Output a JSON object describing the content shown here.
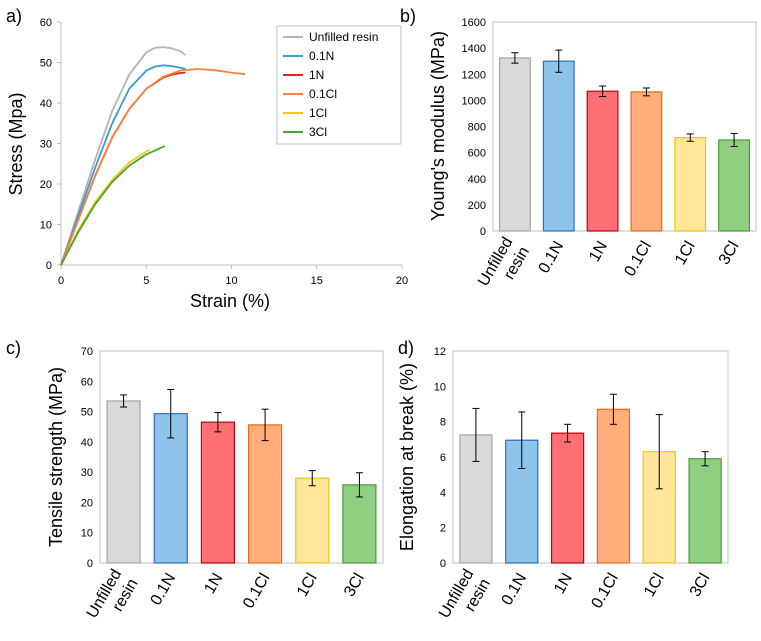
{
  "figure": {
    "colors": {
      "unfilled": "#b4b4b4",
      "n01": "#3a9ad9",
      "n1": "#e52520",
      "cl01": "#f4843c",
      "cl1": "#f7c617",
      "cl3": "#44a832",
      "bar_unfilled": "#d9d9d9",
      "bar_n01": "#8ec4ea",
      "bar_n1": "#ff6f73",
      "bar_cl01": "#ffae7a",
      "bar_cl1": "#ffe699",
      "bar_cl3": "#91cf80",
      "edge_unfilled": "#a5a5a5",
      "edge_n01": "#2a6fbf",
      "edge_n1": "#c0000f",
      "edge_cl01": "#e66a1f",
      "edge_cl1": "#f1c40f",
      "edge_cl3": "#4b9a3a"
    }
  },
  "chart_data": [
    {
      "panel": "a)",
      "type": "line",
      "xlabel": "Strain (%)",
      "ylabel": "Stress (Mpa)",
      "xlim": [
        0,
        20
      ],
      "ylim": [
        0,
        60
      ],
      "xticks": [
        0,
        5,
        10,
        15,
        20
      ],
      "yticks": [
        0,
        10,
        20,
        30,
        40,
        50,
        60
      ],
      "legend_position": "top-right",
      "series": [
        {
          "name": "Unfilled resin",
          "color_key": "unfilled",
          "x": [
            0,
            1,
            2,
            3,
            4,
            5,
            5.5,
            6,
            6.5,
            7,
            7.3
          ],
          "y": [
            0,
            13,
            26,
            38,
            47,
            52.5,
            53.6,
            53.8,
            53.5,
            52.8,
            51.8
          ]
        },
        {
          "name": "0.1N",
          "color_key": "n01",
          "x": [
            0,
            1,
            2,
            3,
            4,
            5,
            5.5,
            6,
            6.5,
            7,
            7.3
          ],
          "y": [
            0,
            12,
            24,
            35,
            43.5,
            48,
            49,
            49.3,
            49.1,
            48.7,
            48.4
          ]
        },
        {
          "name": "1N",
          "color_key": "n1",
          "x": [
            0,
            1,
            2,
            3,
            4,
            5,
            6,
            6.5,
            7,
            7.3
          ],
          "y": [
            0,
            11,
            22,
            31.5,
            38.5,
            43.5,
            46.3,
            47,
            47.4,
            47.5
          ]
        },
        {
          "name": "0.1Cl",
          "color_key": "cl01",
          "x": [
            0,
            1,
            2,
            3,
            4,
            5,
            6,
            7,
            8,
            9,
            10,
            10.8
          ],
          "y": [
            0,
            11,
            22,
            31.5,
            38.5,
            43.5,
            46.5,
            48,
            48.4,
            48.1,
            47.5,
            47.1
          ]
        },
        {
          "name": "1Cl",
          "color_key": "cl1",
          "x": [
            0,
            1,
            2,
            3,
            4,
            5,
            5.2
          ],
          "y": [
            0,
            8.5,
            15.5,
            21,
            25.3,
            28,
            28.4
          ]
        },
        {
          "name": "3Cl",
          "color_key": "cl3",
          "x": [
            0,
            1,
            2,
            3,
            4,
            5,
            6,
            6.1
          ],
          "y": [
            0,
            8,
            15,
            20.5,
            24.5,
            27.3,
            29.2,
            29.3
          ]
        }
      ]
    },
    {
      "panel": "b)",
      "type": "bar",
      "ylabel": "Young's modulus (MPa)",
      "ylim": [
        0,
        1600
      ],
      "yticks": [
        0,
        200,
        400,
        600,
        800,
        1000,
        1200,
        1400,
        1600
      ],
      "categories": [
        "Unfilled resin",
        "0.1N",
        "1N",
        "0.1Cl",
        "1Cl",
        "3Cl"
      ],
      "category_lines": [
        [
          "Unfilled",
          "resin"
        ],
        [
          "0.1N"
        ],
        [
          "1N"
        ],
        [
          "0.1Cl"
        ],
        [
          "1Cl"
        ],
        [
          "3Cl"
        ]
      ],
      "values": [
        1325,
        1300,
        1070,
        1065,
        715,
        697
      ],
      "errors": [
        40,
        85,
        40,
        30,
        28,
        50
      ]
    },
    {
      "panel": "c)",
      "type": "bar",
      "ylabel": "Tensile strength (MPa)",
      "ylim": [
        0,
        70
      ],
      "yticks": [
        0,
        10,
        20,
        30,
        40,
        50,
        60,
        70
      ],
      "categories": [
        "Unfilled resin",
        "0.1N",
        "1N",
        "0.1Cl",
        "1Cl",
        "3Cl"
      ],
      "category_lines": [
        [
          "Unfilled",
          "resin"
        ],
        [
          "0.1N"
        ],
        [
          "1N"
        ],
        [
          "0.1Cl"
        ],
        [
          "1Cl"
        ],
        [
          "3Cl"
        ]
      ],
      "values": [
        53.5,
        49.3,
        46.5,
        45.6,
        28.0,
        25.8
      ],
      "errors": [
        2.0,
        8.0,
        3.2,
        5.2,
        2.5,
        4.0
      ]
    },
    {
      "panel": "d)",
      "type": "bar",
      "ylabel": "Elongation at break (%)",
      "ylim": [
        0,
        12
      ],
      "yticks": [
        0,
        2,
        4,
        6,
        8,
        10,
        12
      ],
      "categories": [
        "Unfilled resin",
        "0.1N",
        "1N",
        "0.1Cl",
        "1Cl",
        "3Cl"
      ],
      "category_lines": [
        [
          "Unfilled",
          "resin"
        ],
        [
          "0.1N"
        ],
        [
          "1N"
        ],
        [
          "0.1Cl"
        ],
        [
          "1Cl"
        ],
        [
          "3Cl"
        ]
      ],
      "values": [
        7.25,
        6.95,
        7.35,
        8.7,
        6.3,
        5.9
      ],
      "errors": [
        1.5,
        1.6,
        0.5,
        0.85,
        2.1,
        0.4
      ]
    }
  ]
}
